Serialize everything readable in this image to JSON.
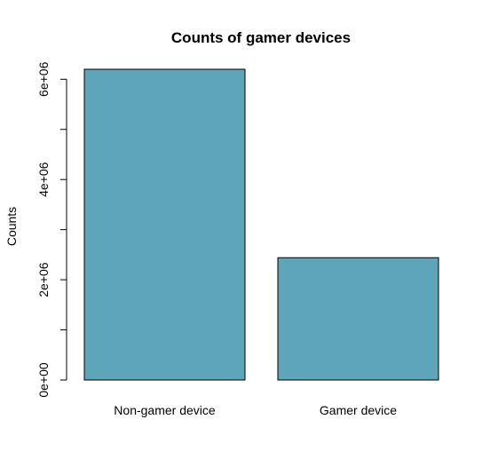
{
  "chart_data": {
    "type": "bar",
    "title": "Counts of gamer devices",
    "xlabel": "",
    "ylabel": "Counts",
    "categories": [
      "Non-gamer device",
      "Gamer device"
    ],
    "values": [
      6200000,
      2440000
    ],
    "ylim": [
      0,
      6200000
    ],
    "yticks": [
      0,
      1000000,
      2000000,
      3000000,
      4000000,
      5000000,
      6000000
    ],
    "ytick_labels": [
      "0e+00",
      "",
      "2e+06",
      "",
      "4e+06",
      "",
      "6e+06"
    ],
    "grid": false,
    "legend": "none",
    "bar_color": "#5FA5B9"
  }
}
